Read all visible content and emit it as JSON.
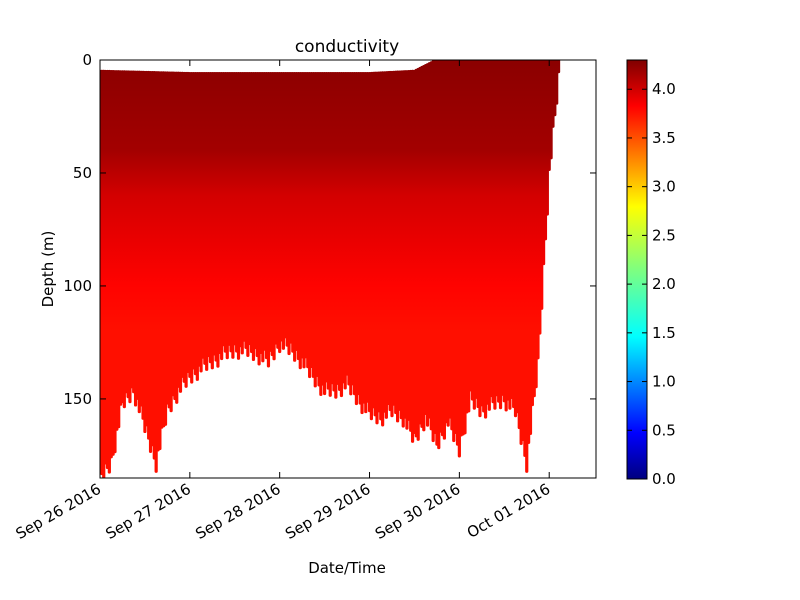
{
  "chart_data": {
    "type": "scatter",
    "title": "conductivity",
    "xlabel": "Date/Time",
    "ylabel": "Depth (m)",
    "x_axis": {
      "kind": "date",
      "range": [
        "2016-09-26",
        "2016-10-01T12:30"
      ],
      "ticks": [
        "2016-09-26",
        "2016-09-27",
        "2016-09-28",
        "2016-09-29",
        "2016-09-30",
        "2016-10-01"
      ],
      "tick_labels": [
        "Sep 26 2016",
        "Sep 27 2016",
        "Sep 28 2016",
        "Sep 29 2016",
        "Sep 30 2016",
        "Oct 01 2016"
      ]
    },
    "y_axis": {
      "inverted": true,
      "range": [
        0,
        185
      ],
      "ticks": [
        0,
        50,
        100,
        150
      ],
      "tick_labels": [
        "0",
        "50",
        "100",
        "150"
      ]
    },
    "colorbar": {
      "colormap": "jet",
      "range": [
        0,
        4.3
      ],
      "ticks": [
        0.0,
        0.5,
        1.0,
        1.5,
        2.0,
        2.5,
        3.0,
        3.5,
        4.0
      ],
      "tick_labels": [
        "0.0",
        "0.5",
        "1.0",
        "1.5",
        "2.0",
        "2.5",
        "3.0",
        "3.5",
        "4.0"
      ]
    },
    "surface_depth": [
      [
        "2016-09-26T00:00",
        5
      ],
      [
        "2016-09-27T00:00",
        6
      ],
      [
        "2016-09-28T00:00",
        6
      ],
      [
        "2016-09-29T00:00",
        6
      ],
      [
        "2016-09-29T12:00",
        5
      ],
      [
        "2016-09-29T18:00",
        0
      ],
      [
        "2016-10-01T06:00",
        0
      ]
    ],
    "profile_max_depth": [
      [
        "2016-09-26T00:00",
        185
      ],
      [
        "2016-09-26T03:00",
        178
      ],
      [
        "2016-09-26T06:00",
        152
      ],
      [
        "2016-09-26T09:00",
        146
      ],
      [
        "2016-09-26T12:00",
        162
      ],
      [
        "2016-09-26T15:00",
        178
      ],
      [
        "2016-09-26T18:00",
        155
      ],
      [
        "2016-09-26T21:00",
        146
      ],
      [
        "2016-09-27T00:00",
        140
      ],
      [
        "2016-09-27T03:00",
        136
      ],
      [
        "2016-09-27T06:00",
        133
      ],
      [
        "2016-09-27T09:00",
        130
      ],
      [
        "2016-09-27T12:00",
        128
      ],
      [
        "2016-09-27T15:00",
        128
      ],
      [
        "2016-09-27T18:00",
        130
      ],
      [
        "2016-09-27T21:00",
        133
      ],
      [
        "2016-09-28T00:00",
        125
      ],
      [
        "2016-09-28T03:00",
        128
      ],
      [
        "2016-09-28T06:00",
        133
      ],
      [
        "2016-09-28T09:00",
        140
      ],
      [
        "2016-09-28T12:00",
        146
      ],
      [
        "2016-09-28T15:00",
        146
      ],
      [
        "2016-09-28T18:00",
        143
      ],
      [
        "2016-09-28T21:00",
        150
      ],
      [
        "2016-09-29T00:00",
        156
      ],
      [
        "2016-09-29T03:00",
        158
      ],
      [
        "2016-09-29T06:00",
        155
      ],
      [
        "2016-09-29T09:00",
        158
      ],
      [
        "2016-09-29T12:00",
        168
      ],
      [
        "2016-09-29T15:00",
        158
      ],
      [
        "2016-09-29T18:00",
        170
      ],
      [
        "2016-09-29T21:00",
        160
      ],
      [
        "2016-09-30T00:00",
        172
      ],
      [
        "2016-09-30T03:00",
        150
      ],
      [
        "2016-09-30T06:00",
        155
      ],
      [
        "2016-09-30T09:00",
        152
      ],
      [
        "2016-09-30T12:00",
        150
      ],
      [
        "2016-09-30T15:00",
        155
      ],
      [
        "2016-09-30T18:00",
        178
      ],
      [
        "2016-09-30T21:00",
        135
      ],
      [
        "2016-10-01T00:00",
        50
      ],
      [
        "2016-10-01T03:00",
        0
      ]
    ],
    "conductivity_by_depth": [
      [
        0,
        4.25
      ],
      [
        20,
        4.2
      ],
      [
        40,
        4.15
      ],
      [
        60,
        3.95
      ],
      [
        80,
        3.85
      ],
      [
        100,
        3.75
      ],
      [
        120,
        3.7
      ],
      [
        150,
        3.7
      ],
      [
        185,
        3.7
      ]
    ]
  }
}
